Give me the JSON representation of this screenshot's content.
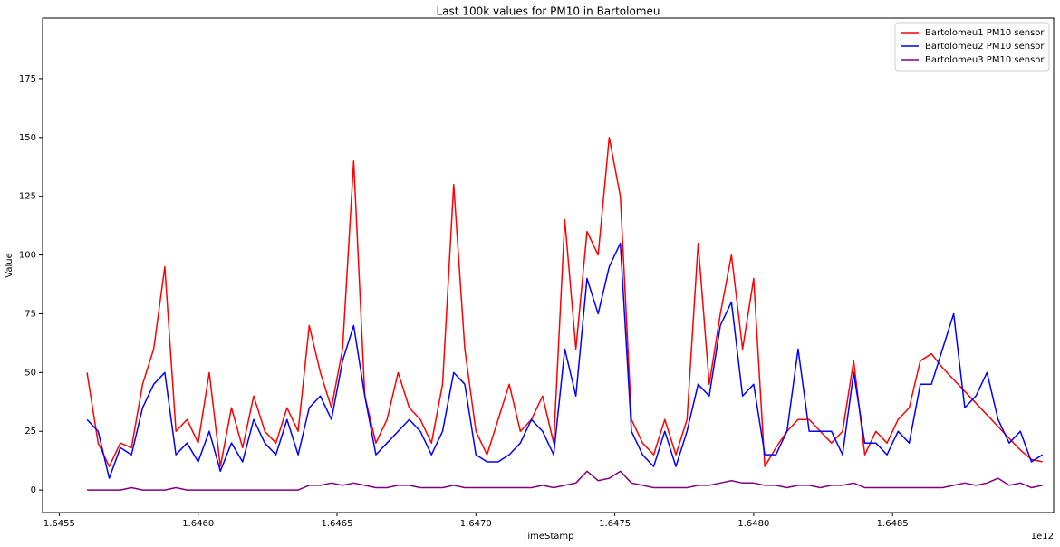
{
  "chart_data": {
    "type": "line",
    "title": "Last 100k values for PM10 in Bartolomeu",
    "xlabel": "TimeStamp",
    "ylabel": "Value",
    "x_offset": "1e12",
    "legend": "upper right",
    "grid": false,
    "x": [
      1.6456,
      1.64564,
      1.64568,
      1.64572,
      1.64576,
      1.6458,
      1.64584,
      1.64588,
      1.64592,
      1.64596,
      1.646,
      1.64604,
      1.64608,
      1.64612,
      1.64616,
      1.6462,
      1.64624,
      1.64628,
      1.64632,
      1.64636,
      1.6464,
      1.64644,
      1.64648,
      1.64652,
      1.64656,
      1.6466,
      1.64664,
      1.64668,
      1.64672,
      1.64676,
      1.6468,
      1.64684,
      1.64688,
      1.64692,
      1.64696,
      1.647,
      1.64704,
      1.64708,
      1.64712,
      1.64716,
      1.6472,
      1.64724,
      1.64728,
      1.64732,
      1.64736,
      1.6474,
      1.64744,
      1.64748,
      1.64752,
      1.64756,
      1.6476,
      1.64764,
      1.64768,
      1.64772,
      1.64776,
      1.6478,
      1.64784,
      1.64788,
      1.64792,
      1.64796,
      1.648,
      1.64804,
      1.64808,
      1.64812,
      1.64816,
      1.6482,
      1.64824,
      1.64828,
      1.64832,
      1.64836,
      1.6484,
      1.64844,
      1.64848,
      1.64852,
      1.64856,
      1.6486,
      1.64864,
      1.64868,
      1.64872,
      1.64876,
      1.6488,
      1.64884,
      1.64888,
      1.64892,
      1.64896,
      1.649,
      1.64904
    ],
    "series": [
      {
        "name": "Bartolomeu1 PM10 sensor",
        "color": "#ff0000",
        "values": [
          50,
          20,
          10,
          20,
          18,
          45,
          60,
          95,
          25,
          30,
          20,
          50,
          10,
          35,
          18,
          40,
          25,
          20,
          35,
          25,
          70,
          50,
          35,
          60,
          140,
          40,
          20,
          30,
          50,
          35,
          30,
          20,
          45,
          130,
          60,
          25,
          15,
          30,
          45,
          25,
          30,
          40,
          20,
          115,
          60,
          110,
          100,
          150,
          125,
          30,
          20,
          15,
          30,
          15,
          30,
          105,
          45,
          75,
          100,
          60,
          90,
          10,
          18,
          25,
          30,
          30,
          25,
          20,
          25,
          55,
          15,
          25,
          20,
          30,
          35,
          55,
          58,
          52,
          47,
          42,
          37,
          32,
          27,
          22,
          17,
          13,
          12
        ]
      },
      {
        "name": "Bartolomeu2 PM10 sensor",
        "color": "#0000ff",
        "values": [
          30,
          25,
          5,
          18,
          15,
          35,
          45,
          50,
          15,
          20,
          12,
          25,
          8,
          20,
          12,
          30,
          20,
          15,
          30,
          15,
          35,
          40,
          30,
          55,
          70,
          40,
          15,
          20,
          25,
          30,
          25,
          15,
          25,
          50,
          45,
          15,
          12,
          12,
          15,
          20,
          30,
          25,
          15,
          60,
          40,
          90,
          75,
          95,
          105,
          25,
          15,
          10,
          25,
          10,
          25,
          45,
          40,
          70,
          80,
          40,
          45,
          15,
          15,
          25,
          60,
          25,
          25,
          25,
          15,
          50,
          20,
          20,
          15,
          25,
          20,
          45,
          45,
          60,
          75,
          35,
          40,
          50,
          30,
          20,
          25,
          12,
          15
        ]
      },
      {
        "name": "Bartolomeu3 PM10 sensor",
        "color": "#800080",
        "values": [
          0,
          0,
          0,
          0,
          1,
          0,
          0,
          0,
          1,
          0,
          0,
          0,
          0,
          0,
          0,
          0,
          0,
          0,
          0,
          0,
          2,
          2,
          3,
          2,
          3,
          2,
          1,
          1,
          2,
          2,
          1,
          1,
          1,
          2,
          1,
          1,
          1,
          1,
          1,
          1,
          1,
          2,
          1,
          2,
          3,
          8,
          4,
          5,
          8,
          3,
          2,
          1,
          1,
          1,
          1,
          2,
          2,
          3,
          4,
          3,
          3,
          2,
          2,
          1,
          2,
          2,
          1,
          2,
          2,
          3,
          1,
          1,
          1,
          1,
          1,
          1,
          1,
          1,
          2,
          3,
          2,
          3,
          5,
          2,
          3,
          1,
          2
        ]
      }
    ],
    "xlim": [
      1.64544,
      1.64908
    ],
    "xticks": [
      1.6455,
      {
        "value": 1.646,
        "label": "1.6460"
      },
      1.6465,
      {
        "value": 1.647,
        "label": "1.6470"
      },
      1.6475,
      {
        "value": 1.648,
        "label": "1.6480"
      },
      1.6485
    ],
    "ylim": [
      -9.6,
      200.8
    ],
    "yticks": [
      0,
      25,
      50,
      75,
      100,
      125,
      150,
      175
    ]
  }
}
